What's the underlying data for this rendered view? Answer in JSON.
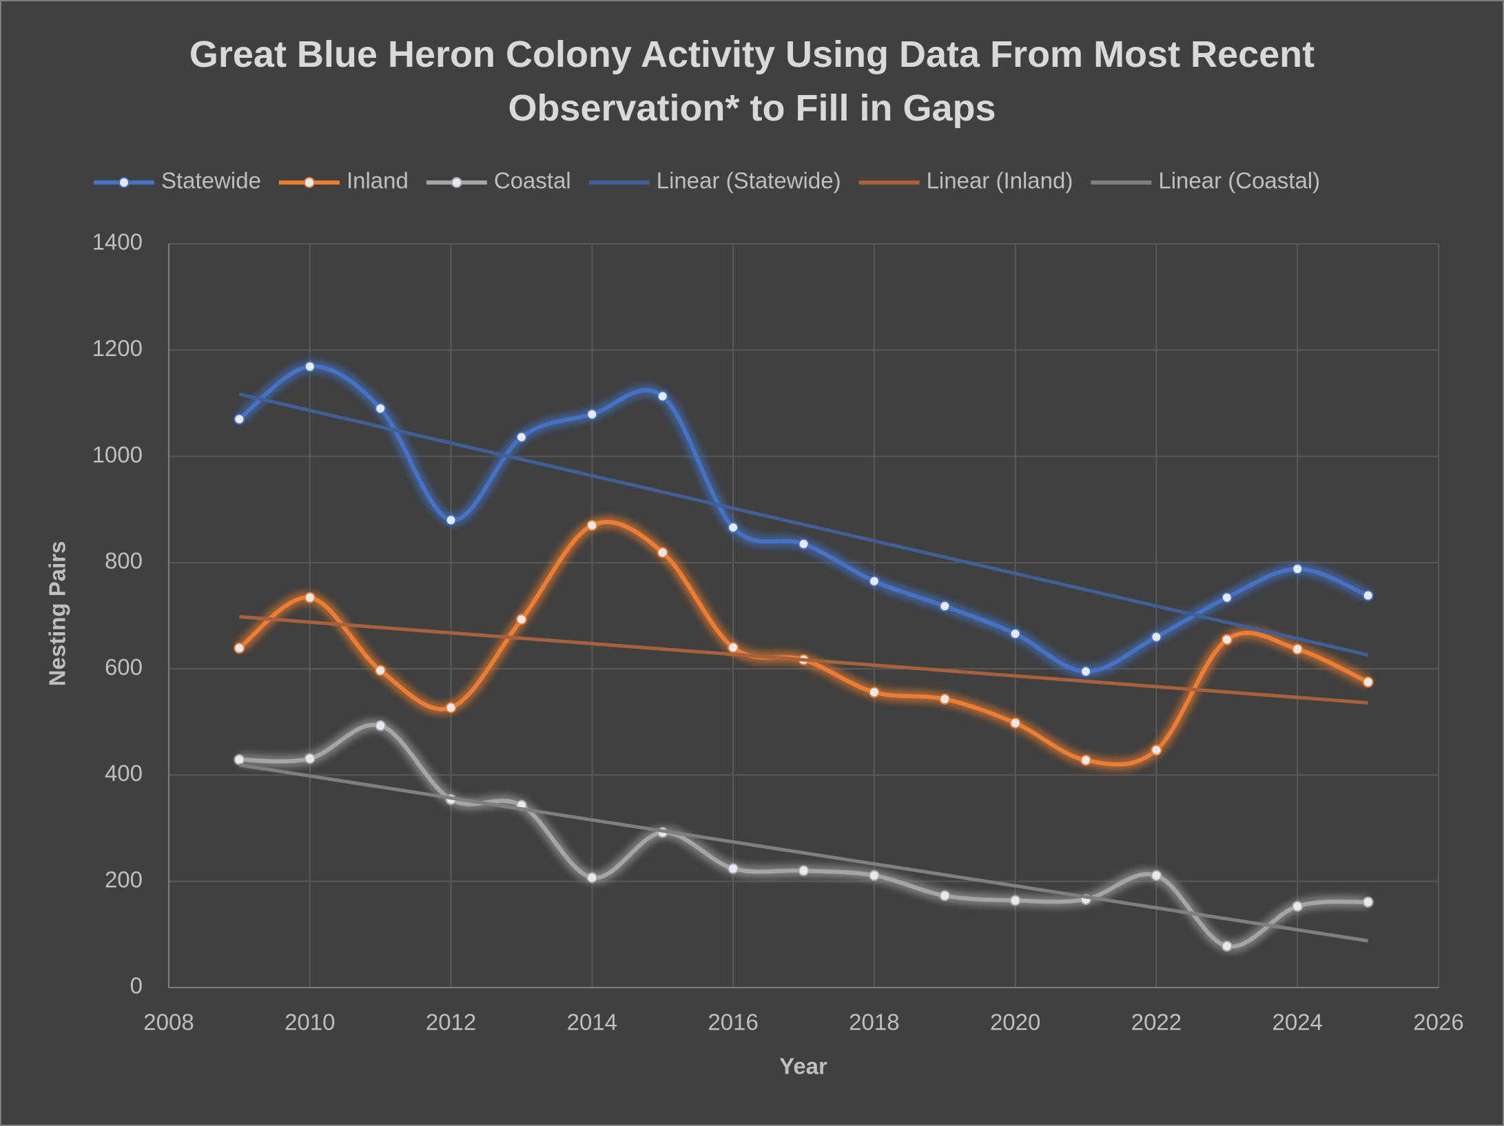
{
  "chart_data": {
    "type": "line",
    "title": "Great Blue Heron Colony Activity Using Data From Most Recent Observation* to Fill in Gaps",
    "x_label": "Year",
    "y_label": "Nesting Pairs",
    "x": [
      2009,
      2010,
      2011,
      2012,
      2013,
      2014,
      2015,
      2016,
      2017,
      2018,
      2019,
      2020,
      2021,
      2022,
      2023,
      2024,
      2025
    ],
    "series": [
      {
        "name": "Statewide",
        "color": "#4472c4",
        "values": [
          1070,
          1169,
          1090,
          880,
          1036,
          1079,
          1113,
          866,
          835,
          765,
          718,
          666,
          595,
          660,
          734,
          788,
          738
        ]
      },
      {
        "name": "Inland",
        "color": "#ed7d31",
        "values": [
          639,
          734,
          597,
          527,
          693,
          870,
          819,
          640,
          617,
          556,
          543,
          498,
          428,
          447,
          655,
          637,
          575
        ]
      },
      {
        "name": "Coastal",
        "color": "#a5a5a5",
        "values": [
          429,
          431,
          493,
          354,
          343,
          207,
          292,
          224,
          220,
          211,
          173,
          164,
          166,
          211,
          78,
          153,
          161
        ]
      }
    ],
    "trendlines": [
      {
        "name": "Linear (Statewide)",
        "color": "#3f5f99",
        "x": [
          2009,
          2025
        ],
        "values": [
          1117,
          626
        ]
      },
      {
        "name": "Linear (Inland)",
        "color": "#a8613a",
        "x": [
          2009,
          2025
        ],
        "values": [
          698,
          536
        ]
      },
      {
        "name": "Linear (Coastal)",
        "color": "#7f7f7f",
        "x": [
          2009,
          2025
        ],
        "values": [
          419,
          88
        ]
      }
    ],
    "xlim": [
      2008,
      2026
    ],
    "xticks": [
      2008,
      2010,
      2012,
      2014,
      2016,
      2018,
      2020,
      2022,
      2024,
      2026
    ],
    "ylim": [
      0,
      1400
    ],
    "yticks": [
      0,
      200,
      400,
      600,
      800,
      1000,
      1200,
      1400
    ],
    "grid": true,
    "legend": "top"
  }
}
